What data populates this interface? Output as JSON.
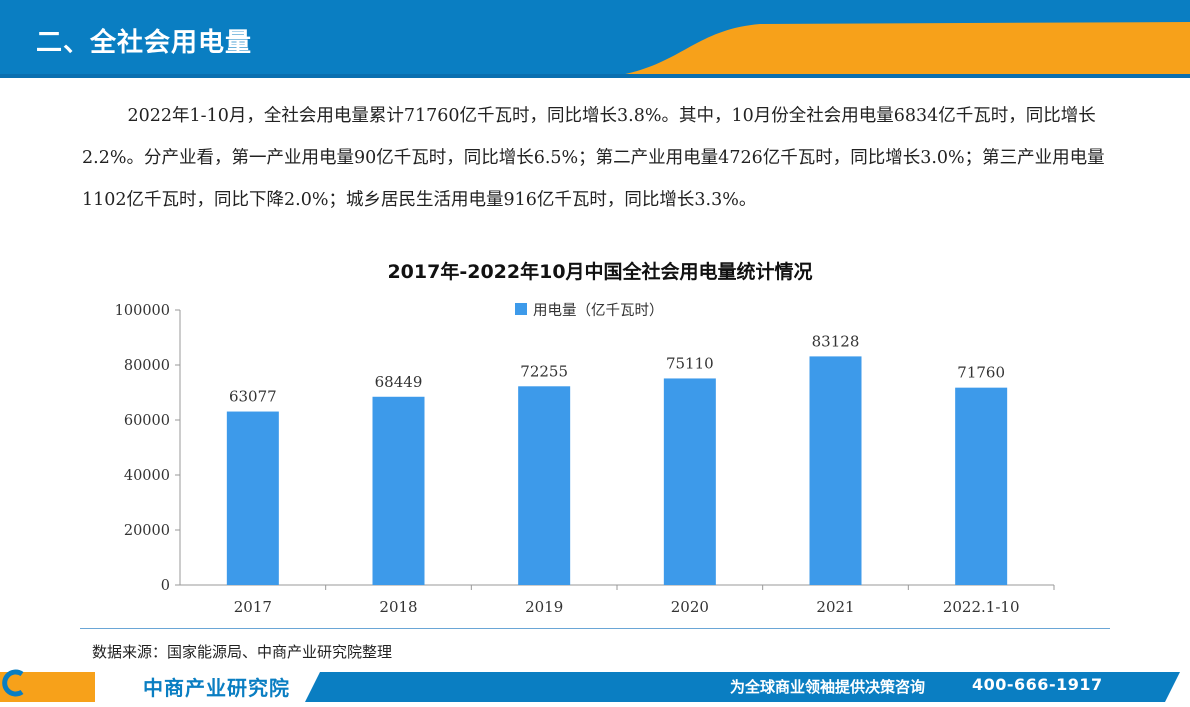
{
  "header": {
    "title": "二、全社会用电量"
  },
  "summary": "2022年1-10月，全社会用电量累计71760亿千瓦时，同比增长3.8%。其中，10月份全社会用电量6834亿千瓦时，同比增长2.2%。分产业看，第一产业用电量90亿千瓦时，同比增长6.5%；第二产业用电量4726亿千瓦时，同比增长3.0%；第三产业用电量1102亿千瓦时，同比下降2.0%；城乡居民生活用电量916亿千瓦时，同比增长3.3%。",
  "chart_data": {
    "type": "bar",
    "title": "2017年-2022年10月中国全社会用电量统计情况",
    "categories": [
      "2017",
      "2018",
      "2019",
      "2020",
      "2021",
      "2022.1-10"
    ],
    "series": [
      {
        "name": "用电量（亿千瓦时）",
        "values": [
          63077,
          68449,
          72255,
          75110,
          83128,
          71760
        ]
      }
    ],
    "yticks": [
      "0",
      "20000",
      "40000",
      "60000",
      "80000",
      "100000"
    ],
    "ylim": [
      0,
      100000
    ],
    "legend_position": "top-center",
    "grid": false,
    "bar_color": "#3d9aea"
  },
  "source": "数据来源：国家能源局、中商产业研究院整理",
  "footer": {
    "brand": "中商产业研究院",
    "slogan": "为全球商业领袖提供决策咨询",
    "hotline": "400-666-1917"
  },
  "colors": {
    "header_blue": "#0a7ec2",
    "accent_orange": "#f7a11a",
    "bar": "#3d9aea"
  }
}
